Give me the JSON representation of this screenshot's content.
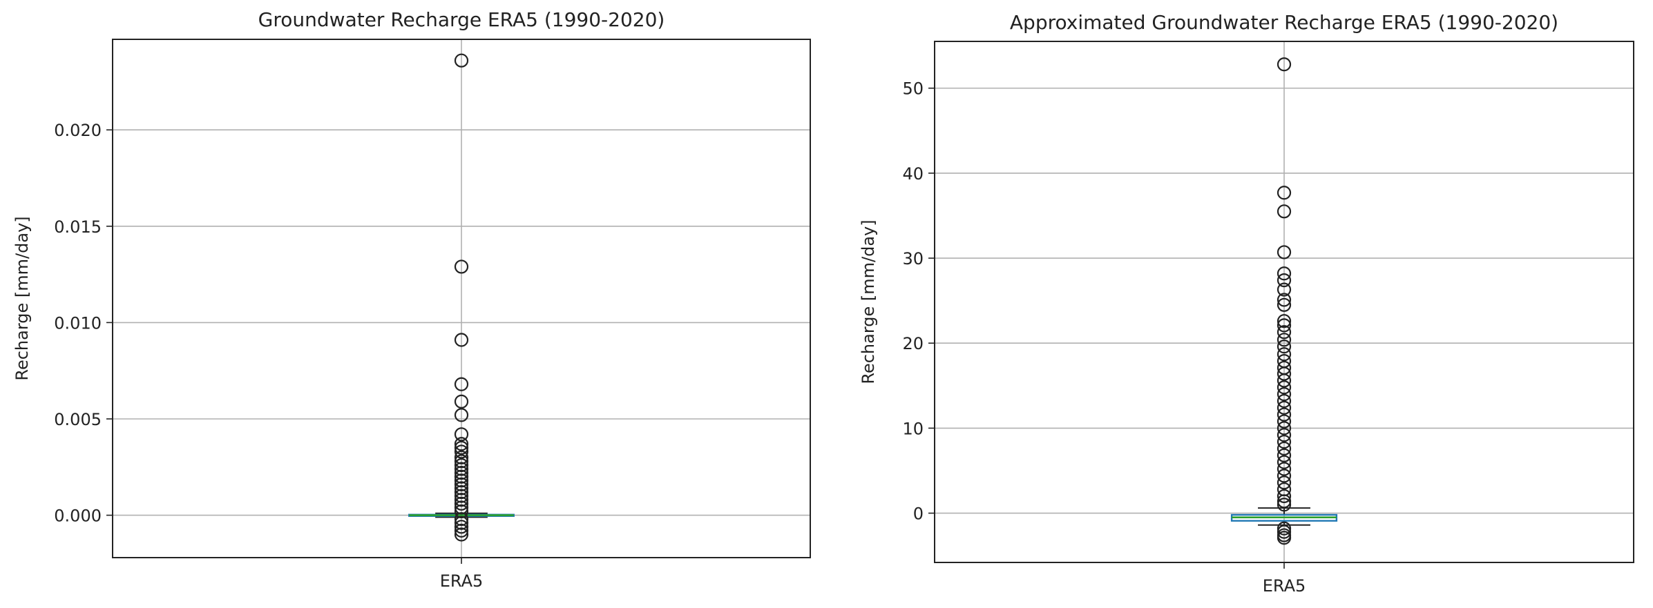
{
  "chart_data": [
    {
      "type": "box",
      "title": "Groundwater Recharge ERA5 (1990-2020)",
      "xlabel": "",
      "ylabel": "Recharge [mm/day]",
      "categories": [
        "ERA5"
      ],
      "ylim": [
        -0.0022,
        0.0247
      ],
      "yticks": [
        0.0,
        0.005,
        0.01,
        0.015,
        0.02
      ],
      "ytick_labels": [
        "0.000",
        "0.005",
        "0.010",
        "0.015",
        "0.020"
      ],
      "grid": true,
      "box": {
        "q1": -3e-05,
        "median": 0.0,
        "q3": 3e-05,
        "whisker_low": -0.0001,
        "whisker_high": 0.0001
      },
      "box_color": "#1f77b4",
      "median_color": "#2ca02c",
      "outliers": [
        0.0236,
        0.0129,
        0.0091,
        0.0068,
        0.0059,
        0.0052,
        0.0042,
        0.0037,
        0.0035,
        0.0033,
        0.003,
        0.0028,
        0.0026,
        0.0024,
        0.0022,
        0.002,
        0.0018,
        0.0016,
        0.0014,
        0.0012,
        0.001,
        0.0008,
        0.0006,
        0.0004,
        0.0002,
        -0.0002,
        -0.0004,
        -0.0006,
        -0.0008,
        -0.001
      ]
    },
    {
      "type": "box",
      "title": "Approximated Groundwater Recharge ERA5 (1990-2020)",
      "xlabel": "",
      "ylabel": "Recharge [mm/day]",
      "categories": [
        "ERA5"
      ],
      "ylim": [
        -5.8,
        55.5
      ],
      "yticks": [
        0,
        10,
        20,
        30,
        40,
        50
      ],
      "ytick_labels": [
        "0",
        "10",
        "20",
        "30",
        "40",
        "50"
      ],
      "grid": true,
      "box": {
        "q1": -0.9,
        "median": -0.5,
        "q3": -0.2,
        "whisker_low": -1.4,
        "whisker_high": 0.6
      },
      "box_color": "#1f77b4",
      "median_color": "#2ca02c",
      "outliers": [
        52.8,
        37.7,
        35.5,
        30.7,
        28.2,
        27.4,
        26.3,
        25.1,
        24.5,
        22.6,
        22.1,
        21.3,
        20.4,
        19.6,
        18.7,
        17.9,
        17.1,
        16.4,
        15.6,
        14.8,
        14.0,
        13.2,
        12.4,
        11.6,
        10.8,
        10.0,
        9.2,
        8.4,
        7.6,
        6.8,
        6.0,
        5.2,
        4.4,
        3.6,
        2.8,
        2.0,
        1.4,
        1.0,
        -1.8,
        -2.2,
        -2.6,
        -2.9
      ]
    }
  ]
}
